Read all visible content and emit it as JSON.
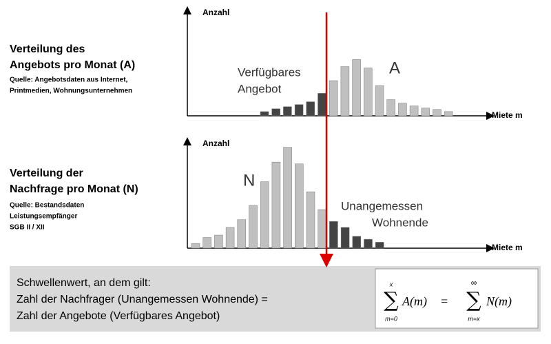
{
  "chart_data": [
    {
      "type": "bar",
      "title": [
        "Verteilung des",
        "Angebots pro Monat (A)"
      ],
      "source": [
        "Quelle: Angebotsdaten aus Internet,",
        "Printmedien, Wohnungsunternehmen"
      ],
      "y_label": "Anzahl",
      "x_label": "Miete m",
      "annotations": [
        [
          "Verfügbares",
          "Angebot"
        ],
        [
          "A"
        ]
      ],
      "categories": [
        null,
        null,
        null,
        null,
        null,
        null,
        null,
        null,
        null,
        null,
        null,
        null,
        null,
        null,
        null,
        null,
        null
      ],
      "values": [
        6,
        10,
        13,
        16,
        20,
        32,
        50,
        70,
        80,
        68,
        43,
        23,
        18,
        14,
        11,
        9,
        6
      ],
      "colors": [
        "#444444",
        "#444444",
        "#444444",
        "#444444",
        "#444444",
        "#444444",
        "#c0c0c0",
        "#c0c0c0",
        "#c0c0c0",
        "#c0c0c0",
        "#c0c0c0",
        "#c0c0c0",
        "#c0c0c0",
        "#c0c0c0",
        "#c0c0c0",
        "#c0c0c0",
        "#c0c0c0"
      ],
      "ylim": [
        0,
        150
      ]
    },
    {
      "type": "bar",
      "title": [
        "Verteilung der",
        "Nachfrage pro Monat (N)"
      ],
      "source": [
        "Quelle: Bestandsdaten",
        "Leistungsempfänger",
        "SGB II / XII"
      ],
      "y_label": "Anzahl",
      "x_label": "Miete m",
      "annotations": [
        [
          "N"
        ],
        [
          "Unangemessen",
          "Wohnende"
        ]
      ],
      "categories": [
        null,
        null,
        null,
        null,
        null,
        null,
        null,
        null,
        null,
        null,
        null,
        null,
        null,
        null,
        null,
        null,
        null
      ],
      "values": [
        8,
        18,
        22,
        35,
        48,
        72,
        112,
        145,
        170,
        142,
        95,
        65,
        45,
        35,
        20,
        15,
        10
      ],
      "colors": [
        "#c0c0c0",
        "#c0c0c0",
        "#c0c0c0",
        "#c0c0c0",
        "#c0c0c0",
        "#c0c0c0",
        "#c0c0c0",
        "#c0c0c0",
        "#c0c0c0",
        "#c0c0c0",
        "#c0c0c0",
        "#c0c0c0",
        "#444444",
        "#444444",
        "#444444",
        "#444444",
        "#444444"
      ],
      "ylim": [
        0,
        180
      ]
    }
  ],
  "footer": {
    "lines": [
      "Schwellenwert, an dem gilt:",
      "Zahl der Nachfrager (Unangemessen  Wohnende) =",
      "Zahl der Angebote (Verfügbares Angebot)"
    ],
    "formula": {
      "sum": "∑",
      "left_top": "x",
      "left_bottom": "m=0",
      "left_term": "A(m)",
      "equals": "=",
      "right_top": "∞",
      "right_bottom": "m=x",
      "right_term": "N(m)"
    }
  }
}
